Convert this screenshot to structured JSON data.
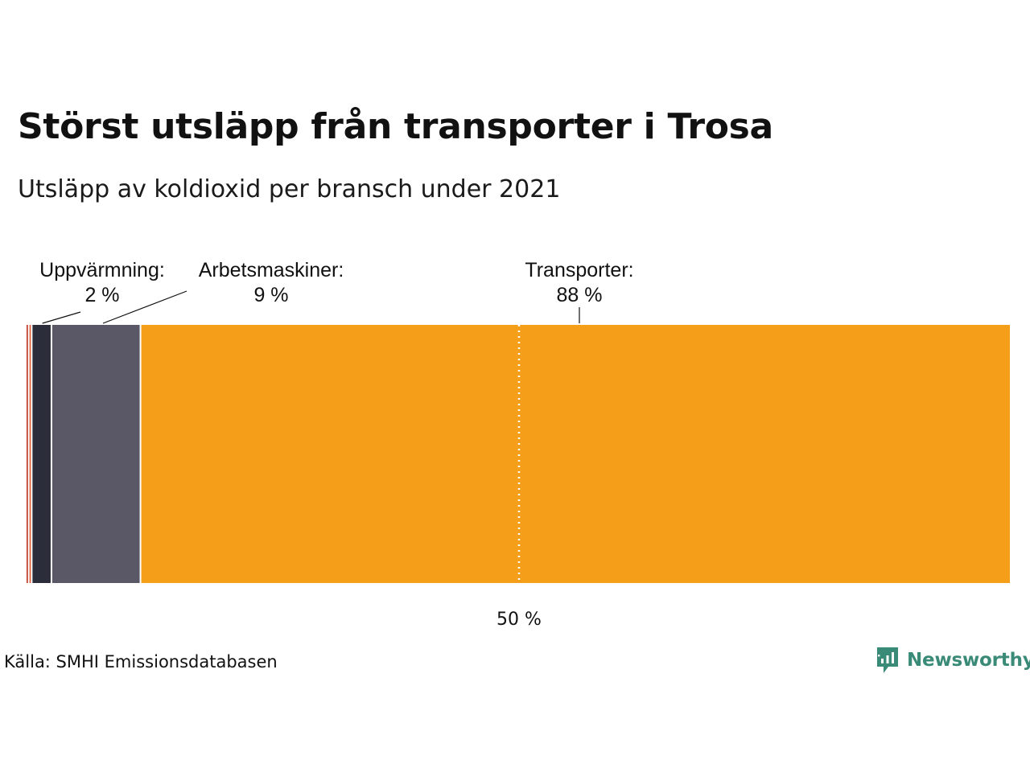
{
  "title": "Störst utsläpp från transporter i Trosa",
  "subtitle": "Utsläpp av koldioxid per bransch under 2021",
  "source": "Källa: SMHI Emissionsdatabasen",
  "brand": {
    "name": "Newsworthy",
    "icon": "newsworthy-logo-icon",
    "color": "#3a8a78"
  },
  "chart_data": {
    "type": "bar",
    "orientation": "horizontal",
    "stacked": true,
    "normalized_to_percent": true,
    "xlim": [
      0,
      100
    ],
    "reference_line": {
      "value": 50,
      "label": "50 %"
    },
    "segments": [
      {
        "label": "",
        "value": 0.3,
        "color": "#c0392b"
      },
      {
        "label": "",
        "value": 0.3,
        "color": "#e05a33"
      },
      {
        "label": "Uppvärmning:",
        "value_label": "2 %",
        "value": 2,
        "color": "#2b2d3a"
      },
      {
        "label": "Arbetsmaskiner:",
        "value_label": "9 %",
        "value": 9,
        "color": "#5a5866"
      },
      {
        "label": "Transporter:",
        "value_label": "88 %",
        "value": 88,
        "color": "#f59e1a"
      }
    ]
  }
}
